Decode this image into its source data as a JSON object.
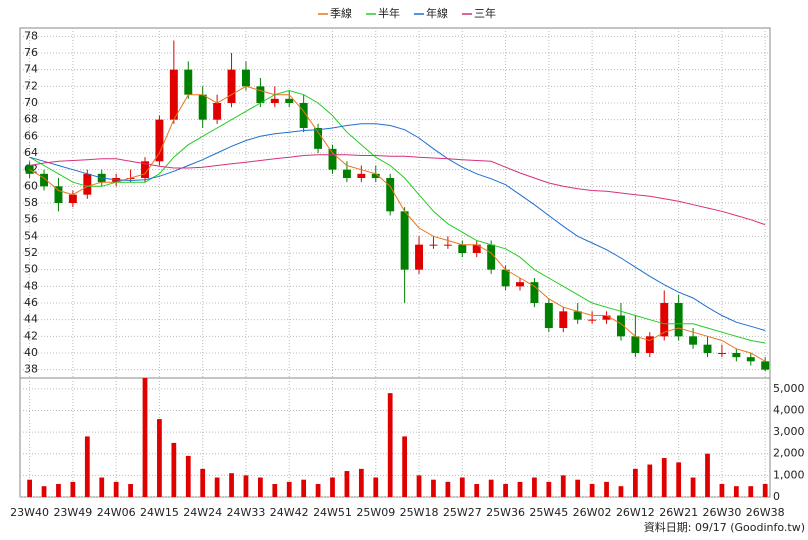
{
  "chart_data": {
    "type": "candlestick",
    "x": [
      0,
      3,
      6,
      9,
      12,
      15,
      18,
      21,
      24,
      27,
      30,
      33,
      36,
      39,
      42,
      45,
      48,
      51,
      54,
      57,
      60,
      63,
      66,
      69,
      72,
      75,
      78,
      81,
      84,
      87,
      90,
      93,
      96,
      99,
      102,
      105,
      108,
      111,
      114,
      117,
      120,
      123,
      126,
      129,
      132,
      135,
      138,
      141,
      144,
      147,
      150,
      153
    ],
    "xlim": [
      -2,
      154
    ],
    "xticks": [
      {
        "value": 0,
        "label": "23W40"
      },
      {
        "value": 9,
        "label": "23W49"
      },
      {
        "value": 18,
        "label": "24W06"
      },
      {
        "value": 27,
        "label": "24W15"
      },
      {
        "value": 36,
        "label": "24W24"
      },
      {
        "value": 45,
        "label": "24W33"
      },
      {
        "value": 54,
        "label": "24W42"
      },
      {
        "value": 63,
        "label": "24W51"
      },
      {
        "value": 72,
        "label": "25W09"
      },
      {
        "value": 81,
        "label": "25W18"
      },
      {
        "value": 90,
        "label": "25W27"
      },
      {
        "value": 99,
        "label": "25W36"
      },
      {
        "value": 108,
        "label": "25W45"
      },
      {
        "value": 117,
        "label": "26W02"
      },
      {
        "value": 126,
        "label": "26W12"
      },
      {
        "value": 135,
        "label": "26W21"
      },
      {
        "value": 144,
        "label": "26W30"
      },
      {
        "value": 153,
        "label": "26W38"
      }
    ],
    "open": [
      62.5,
      61.5,
      60,
      58,
      59,
      61.5,
      60.5,
      61,
      61,
      63,
      68,
      74,
      71,
      68,
      70,
      74,
      72,
      70,
      70.5,
      70,
      67,
      64.5,
      62,
      61,
      61.5,
      61,
      57,
      50,
      53,
      53,
      53,
      52,
      53,
      50,
      48,
      48.5,
      46,
      43,
      45,
      44,
      44,
      44.5,
      42,
      40,
      42,
      46,
      42,
      41,
      40,
      40,
      39.5,
      39
    ],
    "high": [
      63,
      62,
      61,
      59.5,
      62,
      62,
      61.5,
      62,
      63.5,
      68.5,
      77.5,
      75,
      72,
      71,
      76,
      75,
      73,
      72,
      71.5,
      71,
      67.5,
      65,
      63,
      62.5,
      62.5,
      61.5,
      57.5,
      54,
      54,
      54,
      53.5,
      53.5,
      53.5,
      50.5,
      49,
      49,
      46.5,
      45.5,
      46,
      45,
      45,
      46,
      44.5,
      42.5,
      47.5,
      47,
      43,
      42,
      41,
      40.5,
      40,
      39.5
    ],
    "low": [
      61,
      59.5,
      57,
      57.5,
      58.5,
      60,
      60,
      60.5,
      60.5,
      62.5,
      67.5,
      70.5,
      67,
      67.5,
      69.5,
      71.5,
      69.5,
      69.5,
      69.5,
      66.5,
      64,
      61.5,
      60.5,
      60.5,
      60.5,
      56.5,
      46,
      49.5,
      52.5,
      52.5,
      51.5,
      51.5,
      49.5,
      47.5,
      47.5,
      45.5,
      42.5,
      42.5,
      43.5,
      43.5,
      43.5,
      41.5,
      39.5,
      39.5,
      41.5,
      41.5,
      40.5,
      39.5,
      39.5,
      39,
      38.5,
      37.8
    ],
    "close": [
      61.5,
      60,
      58,
      59,
      61.5,
      60.5,
      61,
      61,
      63,
      68,
      74,
      71,
      68,
      70,
      74,
      72,
      70,
      70.5,
      70,
      67,
      64.5,
      62,
      61,
      61.5,
      61,
      57,
      50,
      53,
      53,
      53,
      52,
      53,
      50,
      48,
      48.5,
      46,
      43,
      45,
      44,
      44,
      44.5,
      42,
      40,
      42,
      46,
      42,
      41,
      40,
      40,
      39.5,
      39,
      38
    ],
    "up_color": "#e00000",
    "down_color": "#008000",
    "ylim": [
      37,
      79
    ],
    "yticks": [
      38,
      40,
      42,
      44,
      46,
      48,
      50,
      52,
      54,
      56,
      58,
      60,
      62,
      64,
      66,
      68,
      70,
      72,
      74,
      76,
      78
    ],
    "grid": true,
    "series": [
      {
        "name": "季線",
        "color": "#e8761a",
        "values": [
          62,
          61,
          59.5,
          59,
          60,
          60.5,
          60.5,
          61,
          61.5,
          64,
          68,
          71,
          71,
          70,
          71,
          72,
          71.5,
          71,
          71,
          69,
          66.5,
          64,
          62.5,
          62,
          61.5,
          60,
          57,
          55,
          54,
          53.5,
          53,
          53,
          52,
          50,
          49,
          48,
          46.5,
          45.5,
          45,
          44.5,
          44.5,
          43.5,
          42,
          41.5,
          42.5,
          43,
          42.5,
          42,
          41.5,
          40.5,
          40,
          39
        ]
      },
      {
        "name": "半年",
        "color": "#22cc22",
        "values": [
          63.5,
          62.5,
          61.5,
          60.5,
          60,
          60,
          60.5,
          60.5,
          60.5,
          61.5,
          63.5,
          65,
          66,
          67,
          68,
          69,
          70,
          71,
          71.5,
          71,
          70,
          68.5,
          66.5,
          65,
          63.5,
          62.5,
          61,
          59,
          57,
          55.5,
          54.5,
          53.5,
          53,
          52.5,
          51.5,
          50,
          49,
          48,
          47,
          46,
          45.5,
          45,
          44.5,
          44,
          43.5,
          43.5,
          43.5,
          43,
          42.5,
          42,
          41.5,
          41.2
        ]
      },
      {
        "name": "年線",
        "color": "#1f6fd1",
        "values": [
          63.5,
          63,
          62.5,
          62,
          61.5,
          61,
          60.8,
          60.7,
          60.8,
          61.2,
          61.8,
          62.5,
          63.2,
          64,
          64.8,
          65.5,
          66,
          66.3,
          66.5,
          66.7,
          66.8,
          67,
          67.3,
          67.5,
          67.5,
          67.3,
          66.8,
          65.8,
          64.5,
          63.3,
          62.3,
          61.5,
          60.9,
          60.2,
          59,
          57.8,
          56.5,
          55.2,
          54,
          53.2,
          52.4,
          51.4,
          50.3,
          49.2,
          48.2,
          47.3,
          46.6,
          45.5,
          44.5,
          43.7,
          43.2,
          42.7
        ]
      },
      {
        "name": "三年",
        "color": "#d6317a",
        "values": [
          62.5,
          62.8,
          63,
          63.1,
          63.2,
          63.3,
          63.3,
          63,
          62.7,
          62.4,
          62.2,
          62.2,
          62.3,
          62.5,
          62.7,
          62.9,
          63.1,
          63.3,
          63.5,
          63.7,
          63.8,
          63.8,
          63.8,
          63.7,
          63.7,
          63.6,
          63.6,
          63.5,
          63.4,
          63.3,
          63.2,
          63.1,
          63,
          62.3,
          61.6,
          61,
          60.4,
          60,
          59.7,
          59.5,
          59.4,
          59.2,
          59,
          58.8,
          58.5,
          58.2,
          57.8,
          57.4,
          57,
          56.5,
          56,
          55.4
        ]
      }
    ],
    "volume": {
      "color": "#e00000",
      "values": [
        800,
        500,
        600,
        700,
        2800,
        900,
        700,
        600,
        5500,
        3600,
        2500,
        1900,
        1300,
        900,
        1100,
        1000,
        900,
        600,
        700,
        800,
        600,
        900,
        1200,
        1300,
        900,
        4800,
        2800,
        1000,
        800,
        700,
        900,
        600,
        800,
        600,
        700,
        900,
        700,
        1000,
        800,
        600,
        700,
        500,
        1300,
        1500,
        1800,
        1600,
        900,
        2000,
        600,
        500,
        500,
        600
      ],
      "ylim": [
        0,
        5500
      ],
      "yticks": [
        0,
        {
          "value": 1000,
          "label": "1,000"
        },
        {
          "value": 2000,
          "label": "2,000"
        },
        {
          "value": 3000,
          "label": "3,000"
        },
        {
          "value": 4000,
          "label": "4,000"
        },
        {
          "value": 5000,
          "label": "5,000"
        }
      ]
    },
    "source": "資料日期: 09/17  (Goodinfo.tw)"
  }
}
